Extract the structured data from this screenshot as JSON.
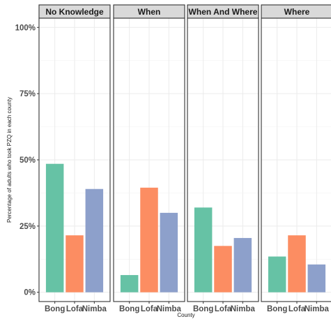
{
  "chart_data": {
    "type": "bar",
    "facets": [
      "No Knowledge",
      "When",
      "When And Where",
      "Where"
    ],
    "categories": [
      "Bong",
      "Lofa",
      "Nimba"
    ],
    "colors": {
      "Bong": "#66c2a5",
      "Lofa": "#fc8d62",
      "Nimba": "#8da0cb"
    },
    "values": {
      "No Knowledge": [
        48.5,
        21.5,
        39.0
      ],
      "When": [
        6.5,
        39.5,
        30.0
      ],
      "When And Where": [
        32.0,
        17.5,
        20.5
      ],
      "Where": [
        13.5,
        21.5,
        10.5
      ]
    },
    "ylim": [
      -3.5,
      103.5
    ],
    "y_ticks": [
      0,
      25,
      50,
      75,
      100
    ],
    "y_tick_labels": [
      "0%",
      "25%",
      "50%",
      "75%",
      "100%"
    ],
    "xlabel": "County",
    "ylabel": "Percentage of adults who took PZQ in each county",
    "grid": true,
    "legend": "none"
  }
}
